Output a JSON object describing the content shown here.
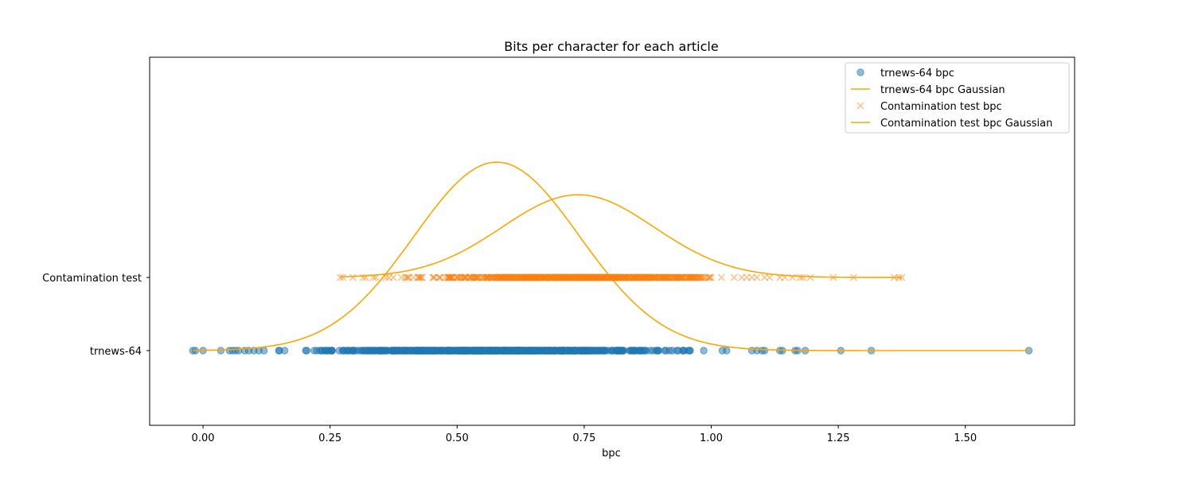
{
  "chart_data": {
    "type": "scatter",
    "title": "Bits per character for each article",
    "xlabel": "bpc",
    "ylabel": "",
    "xlim": [
      -0.105,
      1.715
    ],
    "xticks": [
      0.0,
      0.25,
      0.5,
      0.75,
      1.0,
      1.25,
      1.5
    ],
    "xtick_labels": [
      "0.00",
      "0.25",
      "0.50",
      "0.75",
      "1.00",
      "1.25",
      "1.50"
    ],
    "ycategories": [
      "trnews-64",
      "Contamination test"
    ],
    "grid": false,
    "legend_position": "top-right",
    "colors": {
      "trnews_points": "#1f77b4",
      "contamination_points": "#ff7f0e",
      "gaussian": "#ffa500"
    },
    "series": [
      {
        "name": "trnews-64 bpc",
        "kind": "points",
        "marker": "circle",
        "category": "trnews-64",
        "x_range_dense": [
          0.13,
          1.07
        ],
        "x": [
          -0.02,
          -0.015,
          0.0,
          0.035,
          0.052,
          0.058,
          0.064,
          0.07,
          0.082,
          0.09,
          0.1,
          0.11,
          0.12,
          1.08,
          1.09,
          1.1,
          1.105,
          1.135,
          1.14,
          1.165,
          1.17,
          1.185,
          1.255,
          1.315,
          1.625
        ]
      },
      {
        "name": "trnews-64 bpc Gaussian",
        "kind": "gaussian",
        "category": "trnews-64",
        "mean": 0.578,
        "std": 0.163,
        "x_range": [
          -0.02,
          1.625
        ]
      },
      {
        "name": "Contamination test bpc",
        "kind": "points",
        "marker": "x",
        "category": "Contamination test",
        "x_range_dense": [
          0.36,
          1.0
        ],
        "x": [
          0.27,
          0.275,
          0.295,
          0.315,
          0.32,
          0.335,
          0.34,
          0.36,
          1.02,
          1.045,
          1.06,
          1.07,
          1.08,
          1.09,
          1.105,
          1.115,
          1.135,
          1.145,
          1.16,
          1.175,
          1.18,
          1.195,
          1.24,
          1.28,
          1.36,
          1.37,
          1.375
        ]
      },
      {
        "name": "Contamination test bpc Gaussian",
        "kind": "gaussian",
        "category": "Contamination test",
        "mean": 0.738,
        "std": 0.15,
        "x_range": [
          0.27,
          1.375
        ]
      }
    ]
  }
}
